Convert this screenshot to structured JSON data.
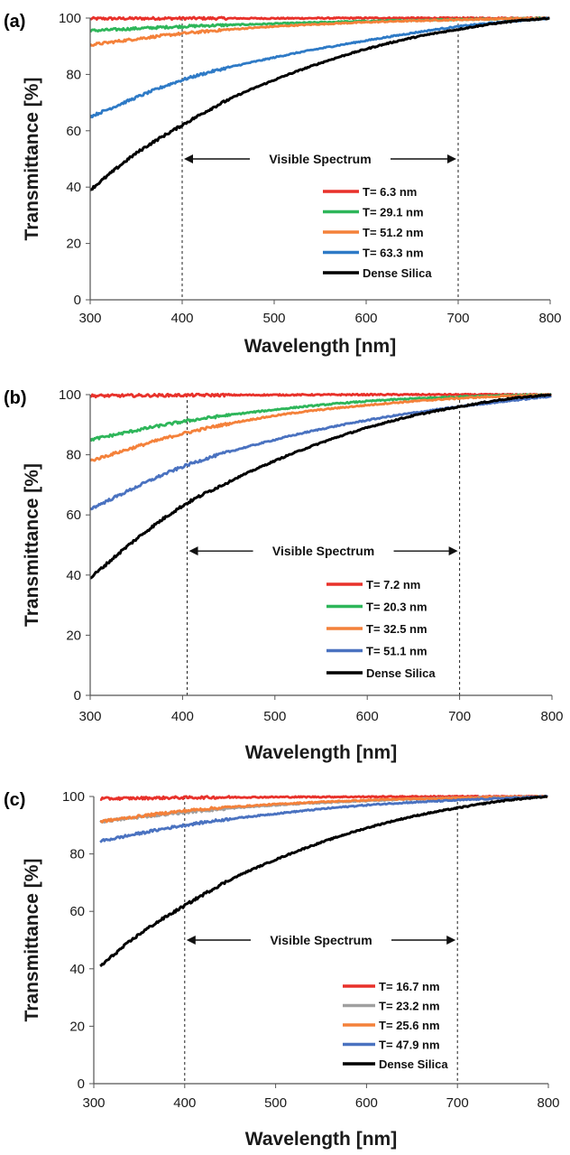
{
  "chart_data": [
    {
      "panel_label": "(a)",
      "type": "line",
      "xlabel": "Wavelength [nm]",
      "ylabel": "Transmittance [%]",
      "xlim": [
        300,
        800
      ],
      "ylim": [
        0,
        100
      ],
      "xticks": [
        300,
        400,
        500,
        600,
        700,
        800
      ],
      "yticks": [
        0,
        20,
        40,
        60,
        80,
        100
      ],
      "legend_position": "lower-right",
      "grid": false,
      "vlines": [
        400,
        700
      ],
      "annotation": {
        "text": "Visible Spectrum",
        "x_from": 400,
        "x_to": 700,
        "y": 50
      },
      "series": [
        {
          "name": "T= 6.3 nm",
          "color": "#e8312a",
          "x": [
            300,
            400,
            500,
            600,
            700,
            800
          ],
          "y": [
            99.8,
            99.9,
            99.9,
            100,
            100,
            100
          ]
        },
        {
          "name": "T= 29.1 nm",
          "color": "#2eb65a",
          "x": [
            300,
            400,
            500,
            600,
            700,
            800
          ],
          "y": [
            95.5,
            97.0,
            98.0,
            98.9,
            99.5,
            100
          ]
        },
        {
          "name": "T= 51.2 nm",
          "color": "#f4813a",
          "x": [
            300,
            400,
            500,
            600,
            700,
            800
          ],
          "y": [
            90.5,
            94.5,
            97.0,
            98.5,
            99.4,
            100
          ]
        },
        {
          "name": "T= 63.3 nm",
          "color": "#2e7ac6",
          "x": [
            300,
            400,
            500,
            600,
            700,
            800
          ],
          "y": [
            65,
            78,
            86,
            92,
            97,
            100
          ]
        },
        {
          "name": "Dense Silica",
          "color": "#000000",
          "x": [
            300,
            350,
            400,
            450,
            500,
            550,
            600,
            650,
            700,
            750,
            800
          ],
          "y": [
            39,
            52,
            62,
            71,
            78,
            84,
            89,
            93,
            96,
            98.5,
            100
          ]
        }
      ]
    },
    {
      "panel_label": "(b)",
      "type": "line",
      "xlabel": "Wavelength [nm]",
      "ylabel": "Transmittance [%]",
      "xlim": [
        300,
        800
      ],
      "ylim": [
        0,
        100
      ],
      "xticks": [
        300,
        400,
        500,
        600,
        700,
        800
      ],
      "yticks": [
        0,
        20,
        40,
        60,
        80,
        100
      ],
      "legend_position": "lower-right",
      "grid": false,
      "vlines": [
        405,
        700
      ],
      "annotation": {
        "text": "Visible Spectrum",
        "x_from": 405,
        "x_to": 700,
        "y": 48
      },
      "series": [
        {
          "name": "T= 7.2 nm",
          "color": "#e8312a",
          "x": [
            300,
            400,
            500,
            600,
            700,
            800
          ],
          "y": [
            99.6,
            99.8,
            99.9,
            100,
            100,
            100
          ]
        },
        {
          "name": "T= 20.3 nm",
          "color": "#2eb65a",
          "x": [
            300,
            400,
            500,
            600,
            700,
            800
          ],
          "y": [
            85,
            91,
            95,
            97.8,
            99.3,
            100
          ]
        },
        {
          "name": "T= 32.5 nm",
          "color": "#f4813a",
          "x": [
            300,
            400,
            500,
            600,
            700,
            800
          ],
          "y": [
            78,
            87,
            93,
            96.5,
            98.8,
            100
          ]
        },
        {
          "name": "T= 51.1 nm",
          "color": "#4a72c0",
          "x": [
            300,
            400,
            500,
            600,
            700,
            800
          ],
          "y": [
            62,
            76,
            85,
            91.5,
            96,
            99.5
          ]
        },
        {
          "name": "Dense Silica",
          "color": "#000000",
          "x": [
            300,
            350,
            400,
            450,
            500,
            550,
            600,
            650,
            700,
            750,
            800
          ],
          "y": [
            39,
            52,
            63,
            71,
            78,
            84,
            89,
            93,
            96,
            98.5,
            100
          ]
        }
      ]
    },
    {
      "panel_label": "(c)",
      "type": "line",
      "xlabel": "Wavelength [nm]",
      "ylabel": "Transmittance [%]",
      "xlim": [
        300,
        800
      ],
      "ylim": [
        0,
        100
      ],
      "xticks": [
        300,
        400,
        500,
        600,
        700,
        800
      ],
      "yticks": [
        0,
        20,
        40,
        60,
        80,
        100
      ],
      "legend_position": "lower-right",
      "grid": false,
      "vlines": [
        400,
        700
      ],
      "annotation": {
        "text": "Visible Spectrum",
        "x_from": 400,
        "x_to": 700,
        "y": 50
      },
      "series": [
        {
          "name": "T= 16.7 nm",
          "color": "#e8312a",
          "x": [
            300,
            400,
            500,
            600,
            700,
            800
          ],
          "y": [
            99.2,
            99.6,
            99.8,
            99.9,
            100,
            100
          ]
        },
        {
          "name": "T= 23.2 nm",
          "color": "#a0a0a0",
          "x": [
            300,
            400,
            500,
            600,
            700,
            800
          ],
          "y": [
            91,
            94.5,
            97,
            98.5,
            99.5,
            100
          ]
        },
        {
          "name": "T= 25.6 nm",
          "color": "#f4813a",
          "x": [
            300,
            400,
            500,
            600,
            700,
            800
          ],
          "y": [
            91,
            95,
            97.3,
            98.7,
            99.5,
            100
          ]
        },
        {
          "name": "T= 47.9 nm",
          "color": "#4a72c0",
          "x": [
            300,
            400,
            500,
            600,
            700,
            800
          ],
          "y": [
            84,
            90,
            94,
            97,
            98.7,
            100
          ]
        },
        {
          "name": "Dense Silica",
          "color": "#000000",
          "x": [
            300,
            350,
            400,
            450,
            500,
            550,
            600,
            650,
            700,
            750,
            800
          ],
          "y": [
            39,
            52,
            62,
            71,
            78,
            84,
            89,
            93,
            96,
            98.5,
            100
          ]
        }
      ]
    }
  ]
}
